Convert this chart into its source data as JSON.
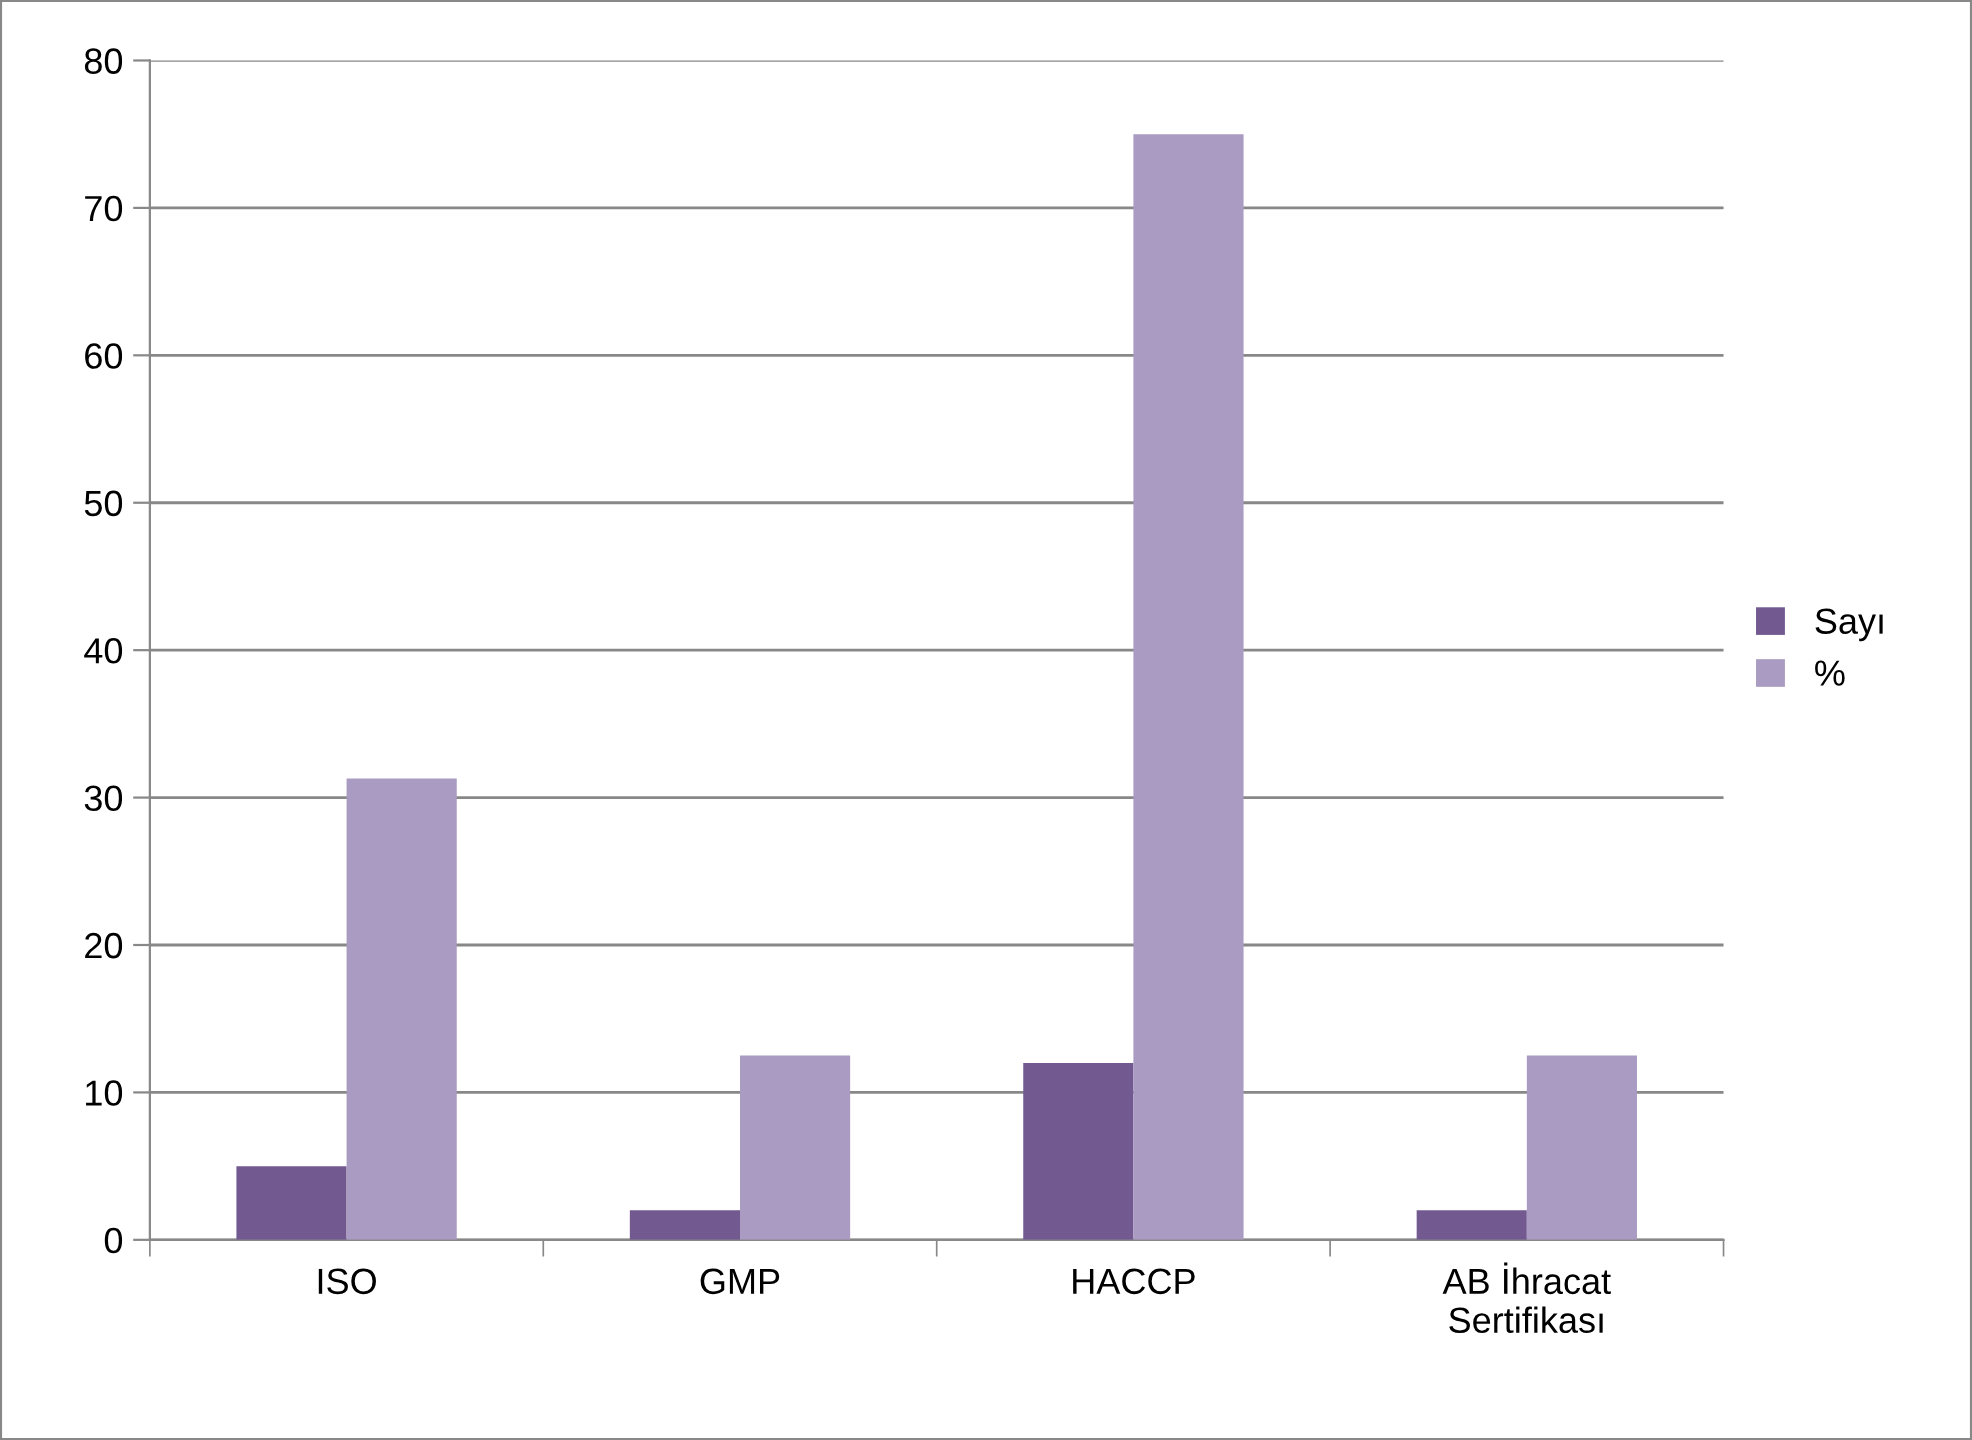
{
  "chart_data": {
    "type": "bar",
    "categories": [
      "ISO",
      "GMP",
      "HACCP",
      "AB İhracat\nSertifikası"
    ],
    "series": [
      {
        "name": "Sayı",
        "color": "#725990",
        "values": [
          5,
          2,
          12,
          2
        ]
      },
      {
        "name": "%",
        "color": "#a99bc1",
        "values": [
          31.3,
          12.5,
          75,
          12.5
        ]
      }
    ],
    "ylim": [
      0,
      80
    ],
    "yticks": [
      0,
      10,
      20,
      30,
      40,
      50,
      60,
      70,
      80
    ],
    "grid": "y",
    "legend": "right"
  }
}
